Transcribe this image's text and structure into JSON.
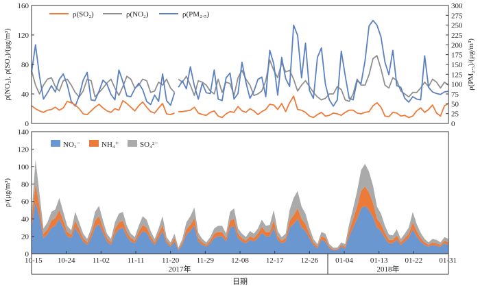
{
  "chart_data": [
    {
      "type": "line",
      "y_label_left": "ρ(NO₂), ρ(SO₂)/(μg/m³)",
      "y_label_right": "ρ(PM₂.₅)/(μg/m³)",
      "ylim_left": [
        0,
        160
      ],
      "ylim_right": [
        0,
        300
      ],
      "yticks_left": [
        "0",
        "40",
        "80",
        "120",
        "160"
      ],
      "yticks_right": [
        "0",
        "25",
        "50",
        "75",
        "100",
        "125",
        "150",
        "175",
        "200",
        "225",
        "250",
        "275",
        "300"
      ],
      "grid": false,
      "legend_position": "top-left",
      "gap_after_index": 36,
      "series": [
        {
          "name": "ρ(SO₂)",
          "axis": "left",
          "color": "#ec7b3a",
          "values": [
            24,
            20,
            17,
            15,
            18,
            19,
            22,
            18,
            21,
            30,
            28,
            25,
            20,
            13,
            12,
            17,
            22,
            26,
            21,
            17,
            15,
            20,
            18,
            31,
            27,
            22,
            17,
            24,
            29,
            22,
            16,
            14,
            21,
            27,
            13,
            12,
            14,
            16,
            16,
            17,
            18,
            22,
            14,
            12,
            11,
            15,
            17,
            10,
            8,
            13,
            16,
            15,
            23,
            17,
            15,
            20,
            17,
            12,
            16,
            19,
            26,
            25,
            19,
            27,
            16,
            28,
            37,
            19,
            18,
            15,
            10,
            8,
            12,
            15,
            10,
            11,
            14,
            13,
            11,
            15,
            18,
            18,
            14,
            13,
            15,
            16,
            24,
            28,
            22,
            10,
            9,
            15,
            14,
            10,
            11,
            8,
            10,
            17,
            21,
            15,
            19,
            25,
            14,
            10,
            24,
            27
          ]
        },
        {
          "name": "ρ(NO₂)",
          "axis": "left",
          "color": "#8f8f8f",
          "values": [
            72,
            52,
            40,
            52,
            60,
            62,
            50,
            44,
            58,
            60,
            52,
            42,
            36,
            44,
            60,
            58,
            36,
            42,
            48,
            55,
            60,
            48,
            38,
            50,
            64,
            60,
            48,
            52,
            60,
            58,
            42,
            44,
            56,
            52,
            60,
            48,
            42,
            60,
            56,
            64,
            52,
            38,
            58,
            56,
            52,
            44,
            40,
            60,
            42,
            56,
            54,
            38,
            62,
            72,
            60,
            52,
            38,
            40,
            44,
            58,
            86,
            72,
            62,
            82,
            70,
            72,
            60,
            44,
            52,
            58,
            50,
            42,
            36,
            32,
            34,
            40,
            40,
            50,
            46,
            32,
            30,
            40,
            60,
            52,
            52,
            66,
            88,
            92,
            74,
            52,
            48,
            62,
            58,
            44,
            40,
            36,
            42,
            42,
            48,
            56,
            50,
            60,
            56,
            48,
            56,
            52
          ]
        },
        {
          "name": "ρ(PM₂.₅)",
          "axis": "right",
          "color": "#5b80c0",
          "values": [
            130,
            200,
            120,
            62,
            78,
            96,
            80,
            112,
            126,
            98,
            56,
            44,
            70,
            110,
            130,
            60,
            58,
            82,
            110,
            100,
            74,
            60,
            136,
            106,
            70,
            68,
            88,
            102,
            86,
            56,
            48,
            72,
            56,
            126,
            58,
            46,
            78,
            92,
            108,
            88,
            144,
            96,
            62,
            102,
            78,
            76,
            136,
            62,
            58,
            116,
            128,
            62,
            76,
            156,
            104,
            64,
            82,
            112,
            118,
            68,
            186,
            152,
            72,
            168,
            114,
            94,
            250,
            224,
            116,
            204,
            84,
            64,
            168,
            192,
            100,
            60,
            44,
            60,
            184,
            122,
            64,
            60,
            108,
            102,
            160,
            248,
            262,
            250,
            220,
            156,
            124,
            186,
            96,
            92,
            64,
            54,
            68,
            62,
            60,
            172,
            92,
            80,
            76,
            74,
            80,
            82
          ]
        }
      ]
    },
    {
      "type": "area",
      "stacked": true,
      "y_label": "ρ/(μg/m³)",
      "ylim": [
        0,
        140
      ],
      "yticks": [
        "0",
        "20",
        "40",
        "60",
        "80",
        "100",
        "120",
        "140"
      ],
      "x_label": "日期",
      "x_ticks": [
        "10-15",
        "10-24",
        "11-02",
        "11-11",
        "11-20",
        "11-29",
        "12-08",
        "12-17",
        "12-26",
        "01-04",
        "01-13",
        "01-22",
        "01-31"
      ],
      "year_labels": [
        "2017年",
        "2018年"
      ],
      "grid": false,
      "legend_position": "top-left",
      "series": [
        {
          "name": "NO₃⁻",
          "color": "#6a97cf",
          "values": [
            30,
            60,
            42,
            18,
            22,
            30,
            32,
            40,
            30,
            20,
            18,
            30,
            22,
            14,
            10,
            18,
            30,
            34,
            24,
            14,
            10,
            22,
            28,
            30,
            20,
            14,
            12,
            20,
            26,
            24,
            16,
            10,
            18,
            26,
            12,
            8,
            14,
            4,
            10,
            22,
            26,
            32,
            14,
            10,
            8,
            12,
            18,
            20,
            20,
            14,
            30,
            32,
            18,
            14,
            12,
            16,
            14,
            18,
            24,
            20,
            20,
            30,
            16,
            12,
            14,
            30,
            34,
            40,
            30,
            26,
            18,
            10,
            6,
            16,
            14,
            6,
            4,
            4,
            8,
            6,
            20,
            30,
            40,
            52,
            55,
            50,
            42,
            30,
            26,
            18,
            12,
            12,
            16,
            10,
            14,
            18,
            28,
            20,
            14,
            10,
            8,
            10,
            9,
            8,
            12,
            10
          ]
        },
        {
          "name": "NH₄⁺",
          "color": "#ec7b3a",
          "values": [
            8,
            20,
            12,
            5,
            6,
            8,
            9,
            10,
            8,
            5,
            4,
            8,
            6,
            4,
            3,
            5,
            8,
            9,
            6,
            4,
            3,
            6,
            8,
            8,
            5,
            4,
            3,
            5,
            7,
            6,
            4,
            3,
            5,
            7,
            3,
            2,
            4,
            1,
            3,
            6,
            7,
            9,
            4,
            3,
            2,
            3,
            5,
            5,
            5,
            4,
            8,
            8,
            5,
            4,
            3,
            4,
            4,
            5,
            7,
            5,
            5,
            8,
            4,
            3,
            4,
            8,
            10,
            12,
            10,
            8,
            5,
            3,
            2,
            4,
            4,
            2,
            1,
            1,
            2,
            2,
            6,
            10,
            14,
            20,
            22,
            20,
            16,
            10,
            8,
            6,
            4,
            4,
            5,
            3,
            4,
            5,
            8,
            6,
            4,
            3,
            2,
            3,
            3,
            2,
            3,
            3
          ]
        },
        {
          "name": "SO₄²⁻",
          "color": "#aaaaaa",
          "values": [
            6,
            28,
            15,
            6,
            8,
            10,
            10,
            14,
            10,
            7,
            5,
            10,
            8,
            5,
            4,
            6,
            10,
            12,
            8,
            5,
            4,
            8,
            10,
            10,
            7,
            5,
            4,
            7,
            10,
            9,
            6,
            4,
            6,
            10,
            4,
            3,
            5,
            2,
            4,
            8,
            10,
            12,
            6,
            4,
            3,
            4,
            6,
            7,
            7,
            5,
            10,
            12,
            6,
            5,
            4,
            6,
            5,
            6,
            8,
            7,
            8,
            12,
            6,
            4,
            5,
            12,
            20,
            20,
            14,
            12,
            7,
            4,
            3,
            5,
            5,
            3,
            2,
            2,
            3,
            3,
            8,
            12,
            18,
            24,
            26,
            24,
            20,
            14,
            12,
            8,
            6,
            5,
            7,
            4,
            5,
            7,
            12,
            8,
            6,
            4,
            3,
            4,
            4,
            3,
            4,
            4
          ]
        }
      ]
    }
  ]
}
